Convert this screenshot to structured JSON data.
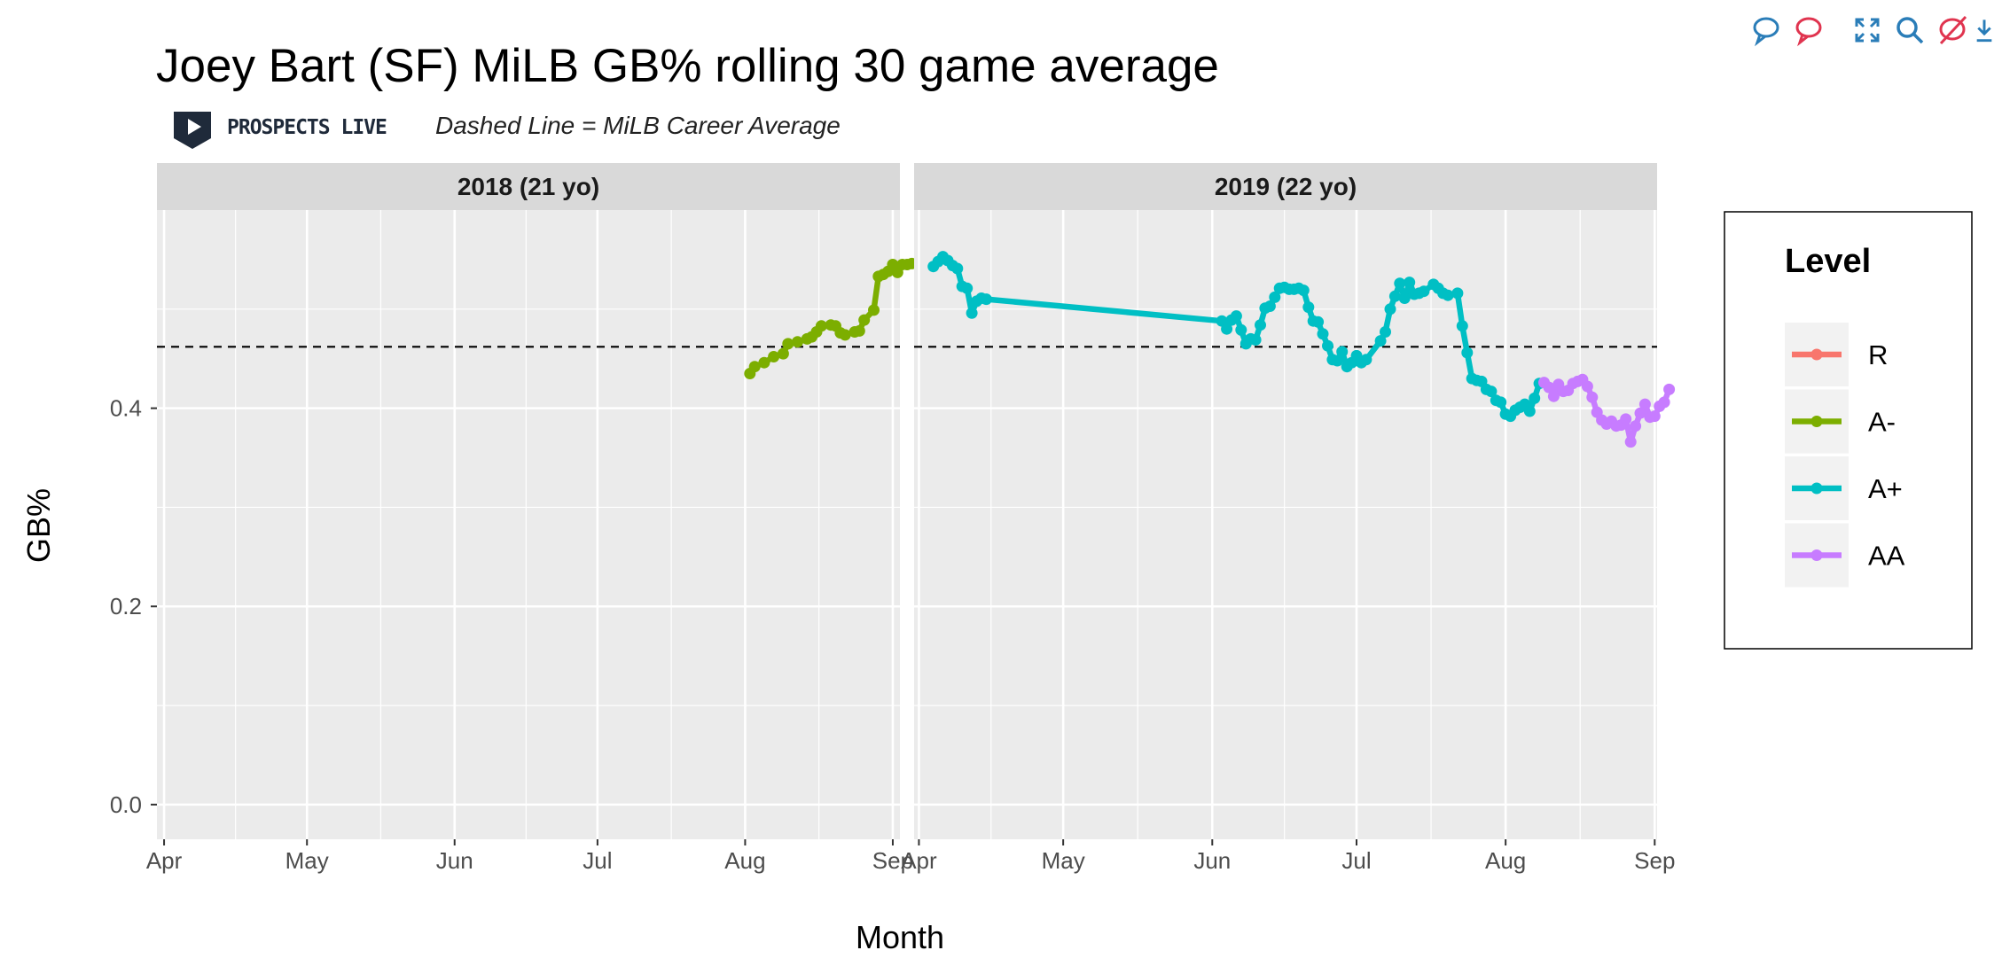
{
  "toolbar": {
    "icons": [
      "comment-blue-icon",
      "comment-red-icon",
      "expand-icon",
      "zoom-icon",
      "no-comment-icon",
      "download-icon"
    ]
  },
  "subtitle_brand": "PROSPECTS LIVE",
  "subtitle_note": "Dashed Line = MiLB Career Average",
  "chart_data": {
    "type": "line",
    "title": "Joey Bart (SF) MiLB GB% rolling 30 game average",
    "xlabel": "Month",
    "ylabel": "GB%",
    "ylim": [
      -0.035,
      0.6
    ],
    "yticks": [
      0.0,
      0.2,
      0.4
    ],
    "ytick_labels": [
      "0.0",
      "0.2",
      "0.4"
    ],
    "career_average": 0.462,
    "grid": true,
    "legend_title": "Level",
    "legend_position": "right",
    "levels": [
      {
        "name": "R",
        "color": "#F8766D"
      },
      {
        "name": "A-",
        "color": "#7CAE00"
      },
      {
        "name": "A+",
        "color": "#00BFC4"
      },
      {
        "name": "AA",
        "color": "#C77CFF"
      }
    ],
    "facets": [
      {
        "label": "2018 (21 yo)",
        "xlim": [
          -1.5,
          154.5
        ],
        "xticks": [
          0,
          30,
          61,
          91,
          122,
          153
        ],
        "xtick_labels": [
          "Apr",
          "May",
          "Jun",
          "Jul",
          "Aug",
          "Sep"
        ],
        "series": [
          {
            "level": "A-",
            "points": [
              [
                123,
                0.435
              ],
              [
                124,
                0.442
              ],
              [
                126,
                0.446
              ],
              [
                128,
                0.452
              ],
              [
                130,
                0.455
              ],
              [
                131,
                0.465
              ],
              [
                133,
                0.467
              ],
              [
                135,
                0.47
              ],
              [
                136,
                0.472
              ],
              [
                137,
                0.477
              ],
              [
                138,
                0.483
              ],
              [
                140,
                0.484
              ],
              [
                141,
                0.483
              ],
              [
                142,
                0.476
              ],
              [
                143,
                0.474
              ],
              [
                145,
                0.477
              ],
              [
                146,
                0.478
              ],
              [
                147,
                0.489
              ],
              [
                149,
                0.499
              ],
              [
                150,
                0.533
              ],
              [
                151,
                0.535
              ],
              [
                152,
                0.538
              ],
              [
                153,
                0.545
              ],
              [
                154,
                0.537
              ],
              [
                155,
                0.545
              ],
              [
                156,
                0.545
              ],
              [
                157,
                0.546
              ]
            ]
          }
        ]
      },
      {
        "label": "2019 (22 yo)",
        "xlim": [
          -1,
          153.5
        ],
        "xticks": [
          0,
          30,
          61,
          91,
          122,
          153
        ],
        "xtick_labels": [
          "Apr",
          "May",
          "Jun",
          "Jul",
          "Aug",
          "Sep"
        ],
        "series": [
          {
            "level": "A+",
            "points": [
              [
                3,
                0.543
              ],
              [
                4,
                0.548
              ],
              [
                5,
                0.553
              ],
              [
                6,
                0.549
              ],
              [
                7,
                0.544
              ],
              [
                8,
                0.541
              ],
              [
                9,
                0.523
              ],
              [
                10,
                0.521
              ],
              [
                11,
                0.496
              ],
              [
                12,
                0.508
              ],
              [
                13,
                0.511
              ],
              [
                14,
                0.51
              ],
              [
                63,
                0.488
              ],
              [
                64,
                0.48
              ],
              [
                65,
                0.489
              ],
              [
                66,
                0.493
              ],
              [
                67,
                0.479
              ],
              [
                68,
                0.465
              ],
              [
                69,
                0.47
              ],
              [
                70,
                0.469
              ],
              [
                71,
                0.484
              ],
              [
                72,
                0.501
              ],
              [
                73,
                0.503
              ],
              [
                74,
                0.512
              ],
              [
                75,
                0.521
              ],
              [
                76,
                0.522
              ],
              [
                77,
                0.52
              ],
              [
                78,
                0.52
              ],
              [
                79,
                0.521
              ],
              [
                80,
                0.519
              ],
              [
                81,
                0.502
              ],
              [
                82,
                0.488
              ],
              [
                83,
                0.487
              ],
              [
                84,
                0.475
              ],
              [
                85,
                0.463
              ],
              [
                86,
                0.449
              ],
              [
                87,
                0.448
              ],
              [
                88,
                0.457
              ],
              [
                89,
                0.442
              ],
              [
                90,
                0.446
              ],
              [
                91,
                0.453
              ],
              [
                92,
                0.446
              ],
              [
                93,
                0.449
              ],
              [
                96,
                0.468
              ],
              [
                97,
                0.477
              ],
              [
                98,
                0.5
              ],
              [
                99,
                0.513
              ],
              [
                100,
                0.526
              ],
              [
                101,
                0.511
              ],
              [
                102,
                0.527
              ],
              [
                103,
                0.515
              ],
              [
                104,
                0.516
              ],
              [
                105,
                0.518
              ],
              [
                107,
                0.525
              ],
              [
                108,
                0.521
              ],
              [
                109,
                0.516
              ],
              [
                110,
                0.514
              ],
              [
                112,
                0.516
              ],
              [
                113,
                0.483
              ],
              [
                114,
                0.456
              ],
              [
                115,
                0.43
              ],
              [
                116,
                0.428
              ],
              [
                117,
                0.427
              ],
              [
                118,
                0.419
              ],
              [
                119,
                0.417
              ],
              [
                120,
                0.408
              ],
              [
                121,
                0.406
              ],
              [
                122,
                0.394
              ],
              [
                123,
                0.392
              ],
              [
                124,
                0.398
              ],
              [
                125,
                0.401
              ],
              [
                126,
                0.404
              ],
              [
                127,
                0.397
              ],
              [
                128,
                0.41
              ],
              [
                129,
                0.425
              ]
            ]
          },
          {
            "level": "AA",
            "points": [
              [
                130,
                0.426
              ],
              [
                131,
                0.421
              ],
              [
                132,
                0.412
              ],
              [
                133,
                0.424
              ],
              [
                134,
                0.417
              ],
              [
                135,
                0.418
              ],
              [
                136,
                0.425
              ],
              [
                137,
                0.427
              ],
              [
                138,
                0.429
              ],
              [
                139,
                0.422
              ],
              [
                140,
                0.411
              ],
              [
                141,
                0.396
              ],
              [
                142,
                0.388
              ],
              [
                143,
                0.384
              ],
              [
                144,
                0.387
              ],
              [
                145,
                0.382
              ],
              [
                146,
                0.383
              ],
              [
                147,
                0.389
              ],
              [
                148,
                0.366
              ],
              [
                149,
                0.382
              ],
              [
                150,
                0.395
              ],
              [
                151,
                0.404
              ],
              [
                152,
                0.391
              ],
              [
                153,
                0.392
              ],
              [
                154,
                0.402
              ],
              [
                155,
                0.406
              ],
              [
                156,
                0.419
              ]
            ]
          }
        ]
      }
    ]
  }
}
